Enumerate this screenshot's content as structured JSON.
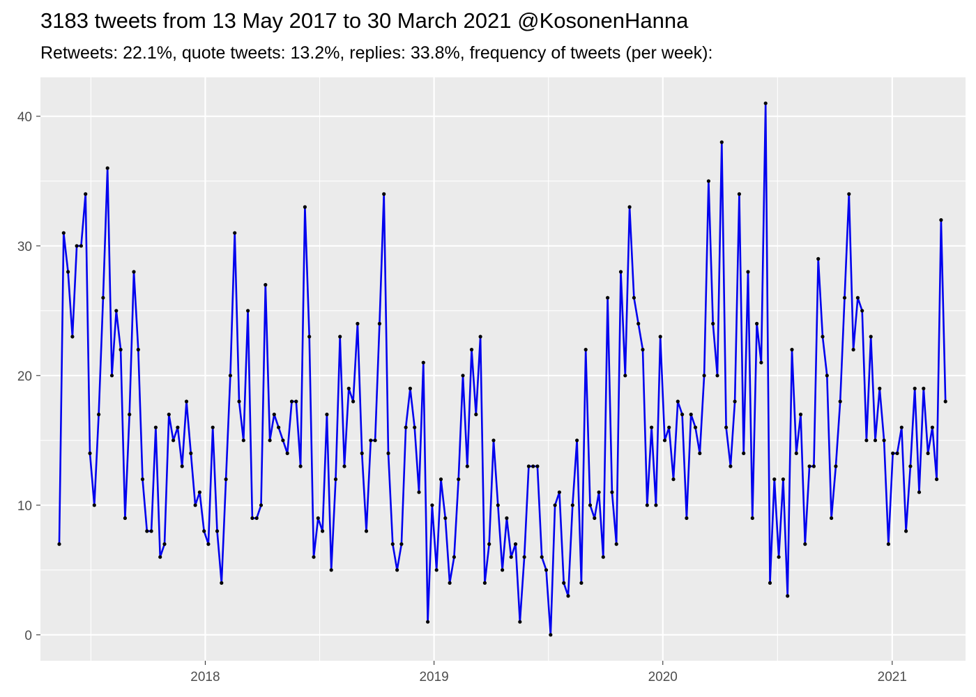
{
  "chart_data": {
    "type": "line",
    "title": "3183 tweets from 13 May 2017 to 30 March 2021 @KosonenHanna",
    "subtitle": "Retweets: 22.1%, quote tweets: 13.2%, replies: 33.8%, frequency of tweets (per week):",
    "xlabel": "",
    "ylabel": "",
    "x_start": "2017-05-13",
    "x_step_days": 7,
    "xlim": [
      "2017-04-13",
      "2021-04-28"
    ],
    "ylim": [
      -2,
      43
    ],
    "x_ticks": [
      {
        "date": "2018-01-01",
        "label": "2018"
      },
      {
        "date": "2019-01-01",
        "label": "2019"
      },
      {
        "date": "2020-01-01",
        "label": "2020"
      },
      {
        "date": "2021-01-01",
        "label": "2021"
      }
    ],
    "y_ticks": [
      0,
      10,
      20,
      30,
      40
    ],
    "grid": true,
    "line_color": "#0000ee",
    "point_color": "#000000",
    "panel_background": "#ebebeb",
    "values": [
      7,
      31,
      28,
      23,
      30,
      30,
      34,
      14,
      10,
      17,
      26,
      36,
      20,
      25,
      22,
      9,
      17,
      28,
      22,
      12,
      8,
      8,
      16,
      6,
      7,
      17,
      15,
      16,
      13,
      18,
      14,
      10,
      11,
      8,
      7,
      16,
      8,
      4,
      12,
      20,
      31,
      18,
      15,
      25,
      9,
      9,
      10,
      27,
      15,
      17,
      16,
      15,
      14,
      18,
      18,
      13,
      33,
      23,
      6,
      9,
      8,
      17,
      5,
      12,
      23,
      13,
      19,
      18,
      24,
      14,
      8,
      15,
      15,
      24,
      34,
      14,
      7,
      5,
      7,
      16,
      19,
      16,
      11,
      21,
      1,
      10,
      5,
      12,
      9,
      4,
      6,
      12,
      20,
      13,
      22,
      17,
      23,
      4,
      7,
      15,
      10,
      5,
      9,
      6,
      7,
      1,
      6,
      13,
      13,
      13,
      6,
      5,
      0,
      10,
      11,
      4,
      3,
      10,
      15,
      4,
      22,
      10,
      9,
      11,
      6,
      26,
      11,
      7,
      28,
      20,
      33,
      26,
      24,
      22,
      10,
      16,
      10,
      23,
      15,
      16,
      12,
      18,
      17,
      9,
      17,
      16,
      14,
      20,
      35,
      24,
      20,
      38,
      16,
      13,
      18,
      34,
      14,
      28,
      9,
      24,
      21,
      41,
      4,
      12,
      6,
      12,
      3,
      22,
      14,
      17,
      7,
      13,
      13,
      29,
      23,
      20,
      9,
      13,
      18,
      26,
      34,
      22,
      26,
      25,
      15,
      23,
      15,
      19,
      15,
      7,
      14,
      14,
      16,
      8,
      13,
      19,
      11,
      19,
      14,
      16,
      12,
      32,
      18
    ]
  }
}
